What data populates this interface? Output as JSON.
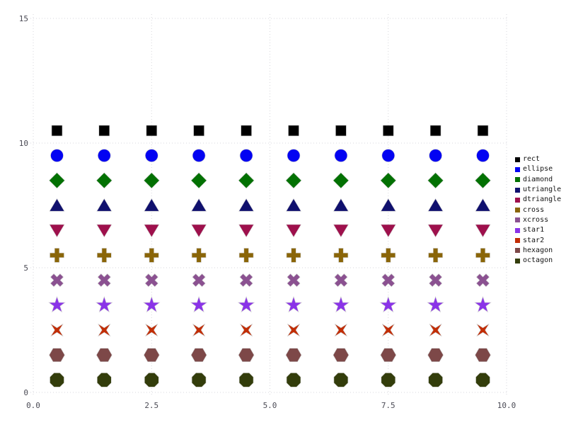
{
  "style": {
    "background": "#ffffff",
    "grid_color": "#d7d7dc",
    "tick_label_color": "#4b4b55",
    "legend_text_color": "#141414"
  },
  "chart_data": {
    "type": "scatter",
    "title": "",
    "xlabel": "",
    "ylabel": "",
    "xlim": [
      0,
      10
    ],
    "ylim": [
      0,
      15
    ],
    "grid": "dotted",
    "legend_position": "right-outside",
    "x_ticks": [
      "0.0",
      "2.5",
      "5.0",
      "7.5",
      "10.0"
    ],
    "x_tick_values": [
      0,
      2.5,
      5,
      7.5,
      10
    ],
    "y_ticks": [
      "0",
      "5",
      "10",
      "15"
    ],
    "y_tick_values": [
      0,
      5,
      10,
      15
    ],
    "x": [
      0.5,
      1.5,
      2.5,
      3.5,
      4.5,
      5.5,
      6.5,
      7.5,
      8.5,
      9.5
    ],
    "series": [
      {
        "name": "rect",
        "marker": "rect",
        "color": "#000000",
        "y": [
          10.5,
          10.5,
          10.5,
          10.5,
          10.5,
          10.5,
          10.5,
          10.5,
          10.5,
          10.5
        ]
      },
      {
        "name": "ellipse",
        "marker": "ellipse",
        "color": "#0303f2",
        "y": [
          9.5,
          9.5,
          9.5,
          9.5,
          9.5,
          9.5,
          9.5,
          9.5,
          9.5,
          9.5
        ]
      },
      {
        "name": "diamond",
        "marker": "diamond",
        "color": "#027102",
        "y": [
          8.5,
          8.5,
          8.5,
          8.5,
          8.5,
          8.5,
          8.5,
          8.5,
          8.5,
          8.5
        ]
      },
      {
        "name": "utriangle",
        "marker": "utriangle",
        "color": "#10106e",
        "y": [
          7.5,
          7.5,
          7.5,
          7.5,
          7.5,
          7.5,
          7.5,
          7.5,
          7.5,
          7.5
        ]
      },
      {
        "name": "dtriangle",
        "marker": "dtriangle",
        "color": "#9e104c",
        "y": [
          6.5,
          6.5,
          6.5,
          6.5,
          6.5,
          6.5,
          6.5,
          6.5,
          6.5,
          6.5
        ]
      },
      {
        "name": "cross",
        "marker": "cross",
        "color": "#8a6508",
        "y": [
          5.5,
          5.5,
          5.5,
          5.5,
          5.5,
          5.5,
          5.5,
          5.5,
          5.5,
          5.5
        ]
      },
      {
        "name": "xcross",
        "marker": "xcross",
        "color": "#8b5191",
        "y": [
          4.5,
          4.5,
          4.5,
          4.5,
          4.5,
          4.5,
          4.5,
          4.5,
          4.5,
          4.5
        ]
      },
      {
        "name": "star1",
        "marker": "star1",
        "color": "#8a33e8",
        "y": [
          3.5,
          3.5,
          3.5,
          3.5,
          3.5,
          3.5,
          3.5,
          3.5,
          3.5,
          3.5
        ]
      },
      {
        "name": "star2",
        "marker": "star2",
        "color": "#c22d05",
        "y": [
          2.5,
          2.5,
          2.5,
          2.5,
          2.5,
          2.5,
          2.5,
          2.5,
          2.5,
          2.5
        ]
      },
      {
        "name": "hexagon",
        "marker": "hexagon",
        "color": "#7d4848",
        "y": [
          1.5,
          1.5,
          1.5,
          1.5,
          1.5,
          1.5,
          1.5,
          1.5,
          1.5,
          1.5
        ]
      },
      {
        "name": "octagon",
        "marker": "octagon",
        "color": "#333d0b",
        "y": [
          0.5,
          0.5,
          0.5,
          0.5,
          0.5,
          0.5,
          0.5,
          0.5,
          0.5,
          0.5
        ]
      }
    ]
  }
}
